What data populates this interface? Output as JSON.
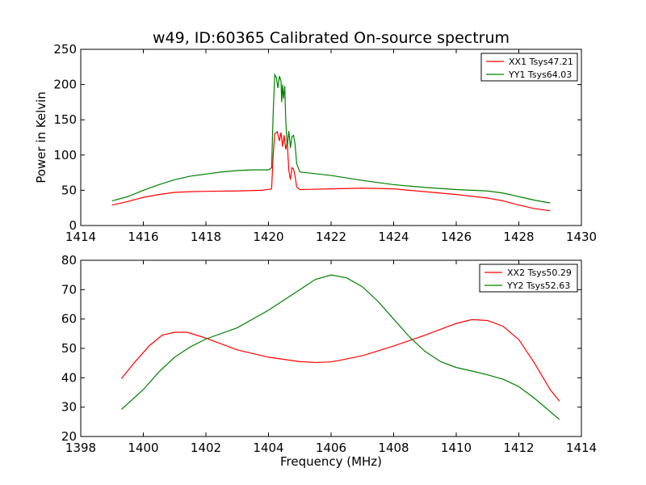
{
  "title": "w49, ID:60365 Calibrated On-source spectrum",
  "chart_data": [
    {
      "type": "line",
      "ylabel": "Power in Kelvin",
      "xlabel": "",
      "xlim": [
        1414,
        1430
      ],
      "ylim": [
        0,
        250
      ],
      "xticks": [
        1414,
        1416,
        1418,
        1420,
        1422,
        1424,
        1426,
        1428,
        1430
      ],
      "yticks": [
        0,
        50,
        100,
        150,
        200,
        250
      ],
      "grid": false,
      "legend_position": "top-right",
      "series": [
        {
          "name": "XX1 Tsys47.21",
          "color": "#ff0000",
          "points": [
            [
              1415.0,
              29
            ],
            [
              1415.5,
              34
            ],
            [
              1416.0,
              40
            ],
            [
              1416.5,
              44
            ],
            [
              1417.0,
              47
            ],
            [
              1417.5,
              48
            ],
            [
              1418.0,
              48.5
            ],
            [
              1419.0,
              49
            ],
            [
              1419.8,
              50
            ],
            [
              1420.1,
              52
            ],
            [
              1420.15,
              100
            ],
            [
              1420.2,
              130
            ],
            [
              1420.28,
              133
            ],
            [
              1420.35,
              120
            ],
            [
              1420.4,
              132
            ],
            [
              1420.45,
              112
            ],
            [
              1420.5,
              128
            ],
            [
              1420.55,
              108
            ],
            [
              1420.6,
              118
            ],
            [
              1420.65,
              78
            ],
            [
              1420.7,
              65
            ],
            [
              1420.75,
              82
            ],
            [
              1420.8,
              80
            ],
            [
              1420.85,
              70
            ],
            [
              1420.9,
              55
            ],
            [
              1421.0,
              51
            ],
            [
              1422.0,
              52
            ],
            [
              1423.0,
              53
            ],
            [
              1424.0,
              52
            ],
            [
              1425.0,
              48
            ],
            [
              1426.0,
              44
            ],
            [
              1427.0,
              39
            ],
            [
              1427.5,
              35
            ],
            [
              1428.0,
              29
            ],
            [
              1428.5,
              24
            ],
            [
              1429.0,
              21
            ]
          ]
        },
        {
          "name": "YY1 Tsys64.03",
          "color": "#008000",
          "points": [
            [
              1415.0,
              35
            ],
            [
              1415.5,
              41
            ],
            [
              1416.0,
              50
            ],
            [
              1416.5,
              58
            ],
            [
              1417.0,
              65
            ],
            [
              1417.5,
              70
            ],
            [
              1418.0,
              73
            ],
            [
              1418.5,
              76
            ],
            [
              1419.0,
              78
            ],
            [
              1419.5,
              79
            ],
            [
              1420.0,
              79
            ],
            [
              1420.1,
              82
            ],
            [
              1420.15,
              160
            ],
            [
              1420.2,
              214
            ],
            [
              1420.25,
              210
            ],
            [
              1420.3,
              195
            ],
            [
              1420.35,
              212
            ],
            [
              1420.4,
              205
            ],
            [
              1420.42,
              175
            ],
            [
              1420.45,
              200
            ],
            [
              1420.48,
              180
            ],
            [
              1420.52,
              198
            ],
            [
              1420.55,
              150
            ],
            [
              1420.6,
              112
            ],
            [
              1420.65,
              134
            ],
            [
              1420.7,
              110
            ],
            [
              1420.75,
              126
            ],
            [
              1420.8,
              128
            ],
            [
              1420.85,
              115
            ],
            [
              1420.9,
              88
            ],
            [
              1421.0,
              76
            ],
            [
              1422.0,
              71
            ],
            [
              1423.0,
              64
            ],
            [
              1424.0,
              58
            ],
            [
              1425.0,
              54
            ],
            [
              1426.0,
              51
            ],
            [
              1427.0,
              49
            ],
            [
              1427.5,
              46
            ],
            [
              1428.0,
              41
            ],
            [
              1428.5,
              36
            ],
            [
              1429.0,
              32
            ]
          ]
        }
      ]
    },
    {
      "type": "line",
      "ylabel": "",
      "xlabel": "Frequency (MHz)",
      "xlim": [
        1398,
        1414
      ],
      "ylim": [
        20,
        80
      ],
      "xticks": [
        1398,
        1400,
        1402,
        1404,
        1406,
        1408,
        1410,
        1412,
        1414
      ],
      "yticks": [
        20,
        30,
        40,
        50,
        60,
        70,
        80
      ],
      "grid": false,
      "legend_position": "top-right",
      "series": [
        {
          "name": "XX2 Tsys50.29",
          "color": "#ff0000",
          "points": [
            [
              1399.3,
              39.7
            ],
            [
              1399.7,
              45
            ],
            [
              1400.2,
              51
            ],
            [
              1400.6,
              54.5
            ],
            [
              1401.0,
              55.5
            ],
            [
              1401.4,
              55.5
            ],
            [
              1402.0,
              53.5
            ],
            [
              1403.0,
              49.5
            ],
            [
              1404.0,
              47
            ],
            [
              1405.0,
              45.5
            ],
            [
              1405.5,
              45.2
            ],
            [
              1406.0,
              45.4
            ],
            [
              1406.3,
              46
            ],
            [
              1407.0,
              47.5
            ],
            [
              1408.0,
              50.8
            ],
            [
              1409.0,
              54.5
            ],
            [
              1410.0,
              58.5
            ],
            [
              1410.5,
              59.8
            ],
            [
              1411.0,
              59.5
            ],
            [
              1411.5,
              57.5
            ],
            [
              1412.0,
              53
            ],
            [
              1412.5,
              45
            ],
            [
              1413.0,
              36
            ],
            [
              1413.3,
              32
            ]
          ]
        },
        {
          "name": "YY2 Tsys52.63",
          "color": "#008000",
          "points": [
            [
              1399.3,
              29.2
            ],
            [
              1400.0,
              36
            ],
            [
              1400.5,
              42
            ],
            [
              1401.0,
              47
            ],
            [
              1401.5,
              50.5
            ],
            [
              1402.0,
              53.2
            ],
            [
              1403.0,
              57
            ],
            [
              1404.0,
              63
            ],
            [
              1405.0,
              70
            ],
            [
              1405.5,
              73.5
            ],
            [
              1406.0,
              75
            ],
            [
              1406.5,
              74
            ],
            [
              1407.0,
              71
            ],
            [
              1407.5,
              66
            ],
            [
              1408.0,
              60
            ],
            [
              1408.5,
              54
            ],
            [
              1409.0,
              49
            ],
            [
              1409.5,
              45.5
            ],
            [
              1410.0,
              43.5
            ],
            [
              1410.5,
              42.3
            ],
            [
              1411.0,
              41
            ],
            [
              1411.5,
              39.5
            ],
            [
              1412.0,
              37
            ],
            [
              1412.5,
              33
            ],
            [
              1413.0,
              28.5
            ],
            [
              1413.3,
              25.8
            ]
          ]
        }
      ]
    }
  ]
}
